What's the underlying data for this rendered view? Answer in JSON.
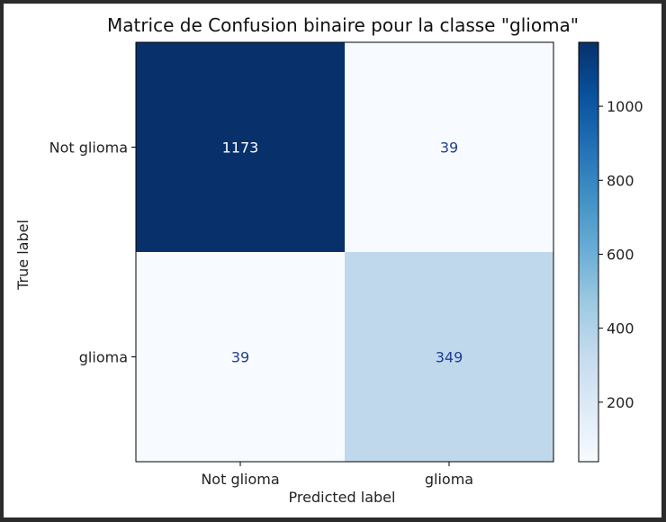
{
  "chart_data": {
    "type": "heatmap",
    "title": "Matrice de Confusion binaire pour la classe \"glioma\"",
    "xlabel": "Predicted label",
    "ylabel": "True label",
    "x_categories": [
      "Not glioma",
      "glioma"
    ],
    "y_categories": [
      "Not glioma",
      "glioma"
    ],
    "matrix": [
      [
        1173,
        39
      ],
      [
        39,
        349
      ]
    ],
    "colormap": "Blues",
    "colors": {
      "low": "#f7fbff",
      "high": "#08306b",
      "text_on_dark": "#ffffff",
      "text_on_light": "#1f3f8f"
    },
    "colorbar": {
      "range": [
        39,
        1173
      ],
      "ticks": [
        200,
        400,
        600,
        800,
        1000
      ],
      "tick_labels": [
        "200",
        "400",
        "600",
        "800",
        "1000"
      ],
      "position": "right"
    }
  }
}
